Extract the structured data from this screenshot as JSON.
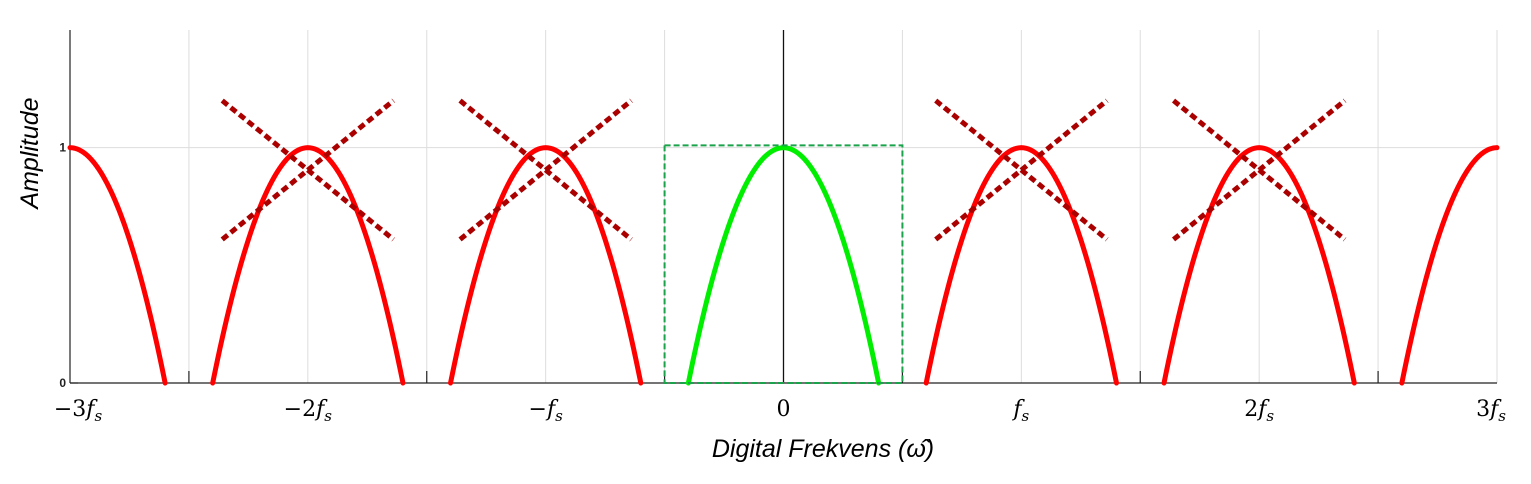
{
  "chart_data": {
    "type": "line",
    "xlabel": "Digital Frekvens (ω̂)",
    "ylabel": "Amplitude",
    "xlim": [
      -3,
      3
    ],
    "ylim": [
      0,
      1.5
    ],
    "x_unit": "fs",
    "grid": true,
    "yticks": [
      {
        "value": 0,
        "label": "0"
      },
      {
        "value": 1,
        "label": "1"
      }
    ],
    "xticks": [
      {
        "value": -3,
        "coef": "−3",
        "sym": "f",
        "sub": "s"
      },
      {
        "value": -2,
        "coef": "−2",
        "sym": "f",
        "sub": "s"
      },
      {
        "value": -1,
        "coef": "−",
        "sym": "f",
        "sub": "s"
      },
      {
        "value": 0,
        "coef": "0",
        "sym": "",
        "sub": ""
      },
      {
        "value": 1,
        "coef": "",
        "sym": "f",
        "sub": "s"
      },
      {
        "value": 2,
        "coef": "2",
        "sym": "f",
        "sub": "s"
      },
      {
        "value": 3,
        "coef": "3",
        "sym": "f",
        "sub": "s"
      }
    ],
    "grid_x": [
      -2.5,
      -2,
      -1.5,
      -1,
      -0.5,
      0,
      0.5,
      1,
      1.5,
      2,
      2.5,
      3
    ],
    "boundary_ticks": [
      -2.5,
      -1.5,
      -0.5,
      0.5,
      1.5,
      2.5
    ],
    "base_spectrum": {
      "description": "amplitude = 1 - (x - center)^2 / 0.16, zero at center ± 0.4",
      "peak": 1,
      "half_width": 0.4
    },
    "baseband": {
      "center": 0,
      "color": "#00ee00"
    },
    "aliases": {
      "centers": [
        -3,
        -2,
        -1,
        1,
        2,
        3
      ],
      "color": "#ff0000",
      "crossed_out": [
        -2,
        -1,
        1,
        2
      ],
      "cross_color": "#aa0000",
      "cross_half_width": 0.36,
      "cross_y_range": [
        0.61,
        1.2
      ]
    },
    "passband_box": {
      "x_range": [
        -0.5,
        0.5
      ],
      "y_range": [
        0,
        1.01
      ],
      "color": "#1aa34a"
    }
  }
}
